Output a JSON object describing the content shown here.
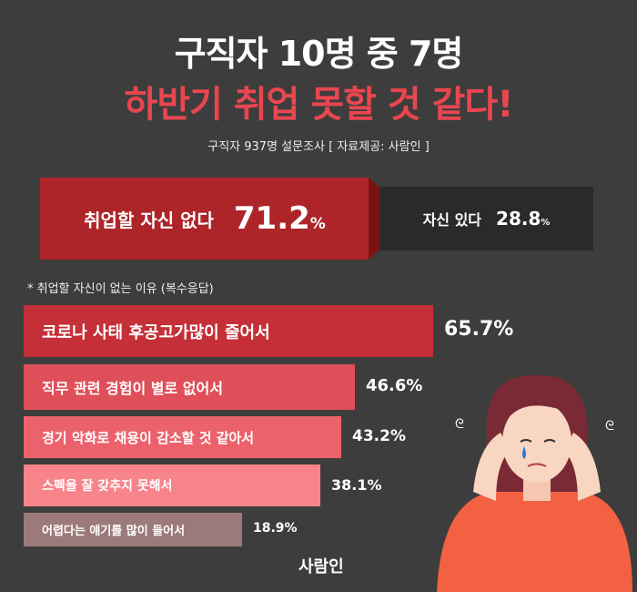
{
  "title_line1": "구직자 10명 중 7명",
  "title_line2": "하반기 취업 못할 것 같다!",
  "subtitle": "구직자 937명 설문조사  [ 자료제공: 사람인 ]",
  "headline": {
    "no": {
      "label": "취업할 자신 없다",
      "value": "71.2",
      "unit": "%"
    },
    "yes": {
      "label": "자신 있다",
      "value": "28.8",
      "unit": "%"
    }
  },
  "note": "* 취업할 자신이 없는 이유 (복수응답)",
  "chart_data": {
    "type": "bar",
    "orientation": "horizontal",
    "categories": [
      "코로나 사태 후공고가많이 줄어서",
      "직무 관련 경험이 별로 없어서",
      "경기 악화로 채용이 감소할 것 같아서",
      "스펙을 잘 갖추지 못해서",
      "어렵다는 얘기를 많이 들어서"
    ],
    "values": [
      65.7,
      46.6,
      43.2,
      38.1,
      18.9
    ],
    "labels": [
      "65.7%",
      "46.6%",
      "43.2%",
      "38.1%",
      "18.9%"
    ],
    "colors": [
      "#c42f38",
      "#df4f59",
      "#ec626c",
      "#f7838b",
      "#9c7a79"
    ],
    "unit": "%"
  },
  "logo": "사람인"
}
